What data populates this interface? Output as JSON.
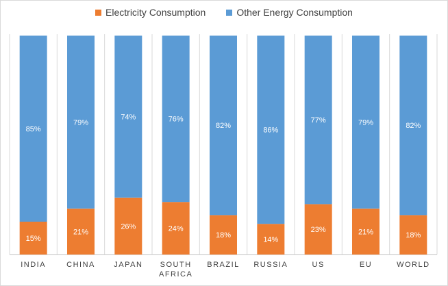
{
  "chart_data": {
    "type": "bar",
    "stacked": true,
    "percent": true,
    "categories": [
      "INDIA",
      "CHINA",
      "JAPAN",
      "SOUTH AFRICA",
      "BRAZIL",
      "RUSSIA",
      "US",
      "EU",
      "WORLD"
    ],
    "series": [
      {
        "name": "Electricity Consumption",
        "color": "#ed7d31",
        "values": [
          15,
          21,
          26,
          24,
          18,
          14,
          23,
          21,
          18
        ]
      },
      {
        "name": "Other Energy Consumption",
        "color": "#5b9bd5",
        "values": [
          85,
          79,
          74,
          76,
          82,
          86,
          77,
          79,
          82
        ]
      }
    ],
    "ylim": [
      0,
      100
    ],
    "grid": true,
    "legend_position": "top"
  }
}
